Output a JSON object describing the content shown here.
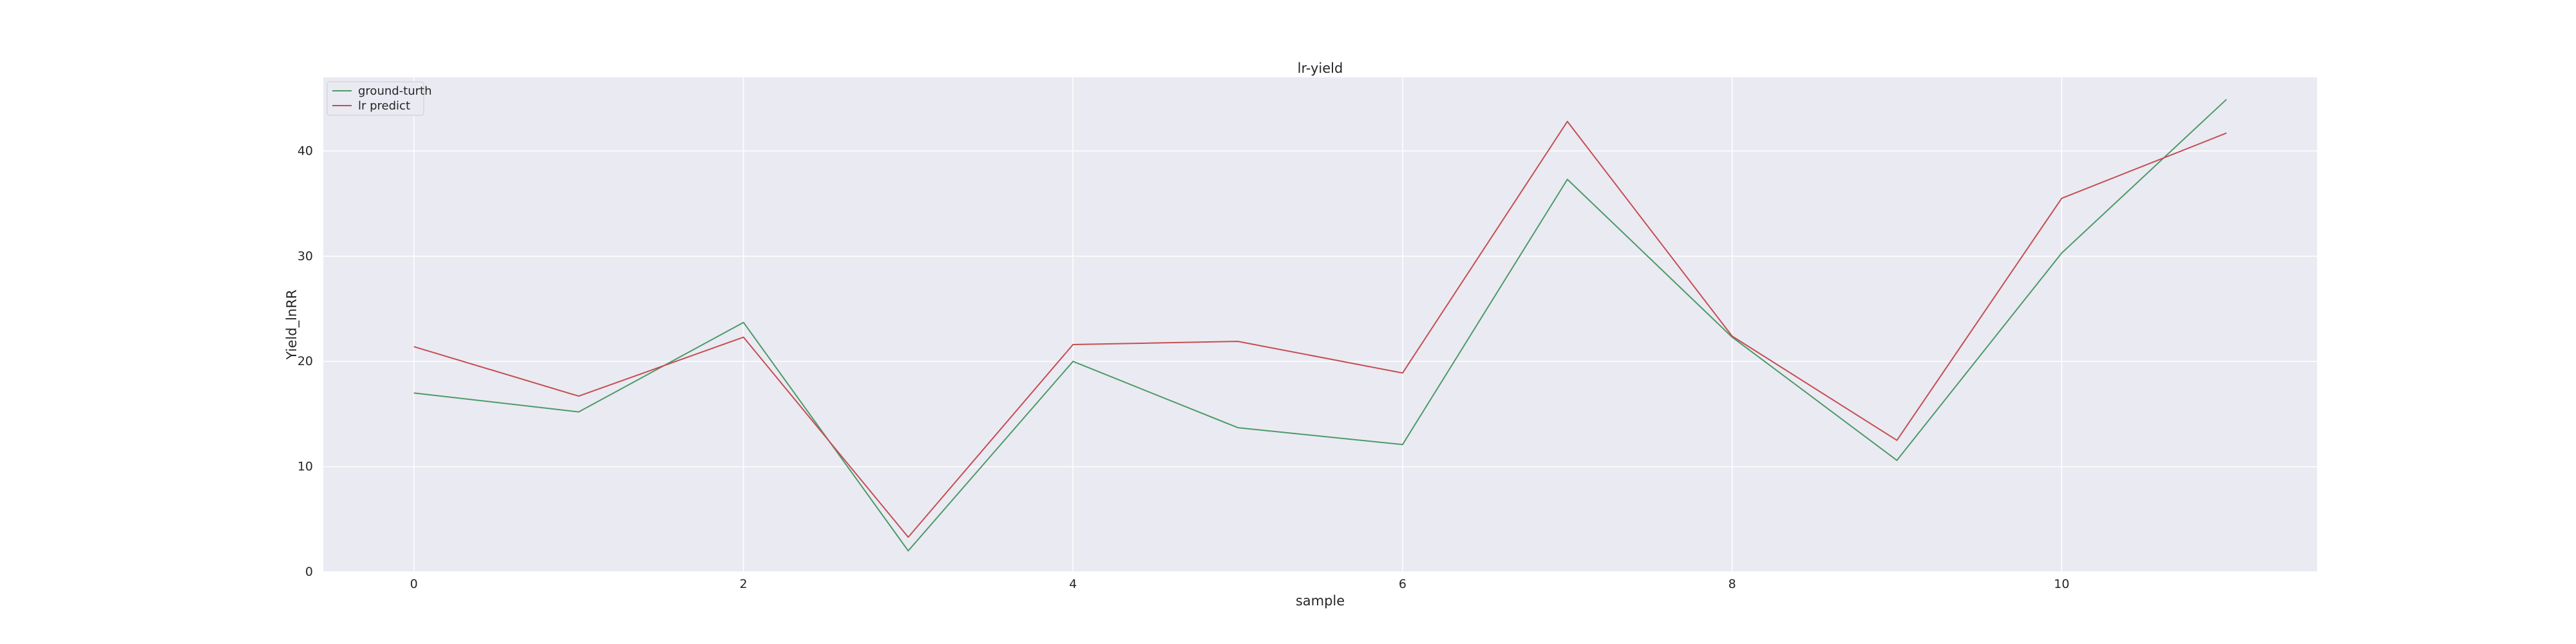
{
  "chart_data": {
    "type": "line",
    "title": "lr-yield",
    "xlabel": "sample",
    "ylabel": "Yield_lnRR",
    "xlim": [
      -0.55,
      11.55
    ],
    "ylim": [
      0,
      47
    ],
    "xticks": [
      0,
      2,
      4,
      6,
      8,
      10
    ],
    "yticks": [
      0,
      10,
      20,
      30,
      40
    ],
    "grid": true,
    "legend_position": "top-left",
    "x": [
      0,
      1,
      2,
      3,
      4,
      5,
      6,
      7,
      8,
      9,
      10,
      11
    ],
    "series": [
      {
        "name": "ground-turth",
        "color": "#4c9a67",
        "values": [
          17.0,
          15.2,
          23.7,
          2.0,
          20.0,
          13.7,
          12.1,
          37.3,
          22.3,
          10.6,
          30.3,
          44.9
        ]
      },
      {
        "name": "lr predict",
        "color": "#c44e52",
        "values": [
          21.4,
          16.7,
          22.3,
          3.3,
          21.6,
          21.9,
          18.9,
          42.8,
          22.4,
          12.5,
          35.5,
          41.7
        ]
      }
    ],
    "colors": {
      "plot_background": "#eaeaf2",
      "grid": "#ffffff",
      "text": "#262626"
    }
  }
}
